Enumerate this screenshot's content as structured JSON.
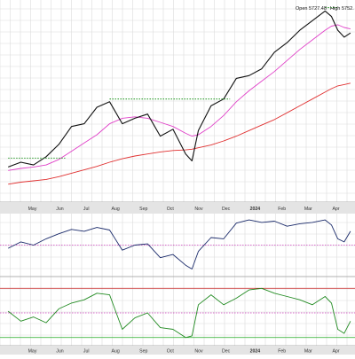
{
  "header": {
    "open_label": "Open",
    "open_value": "5727.48",
    "high_label": "High",
    "high_value": "5752."
  },
  "colors": {
    "price": "#111111",
    "ma_fast": "#e040c8",
    "ma_slow": "#e03030",
    "resistance": "#2e9e2e",
    "osc1": "#1a2a6a",
    "osc1_ref": "#d040c0",
    "osc2": "#228b22",
    "osc2_mid": "#d040c0",
    "osc2_high": "#cc2222",
    "osc2_low": "#22aa22",
    "grid": "#dcdcdc",
    "axis_strip": "#e4e4e4"
  },
  "chart_data": [
    {
      "type": "line",
      "panel": "price",
      "x": [
        "2023-04-10",
        "2023-04-24",
        "2023-05-08",
        "2023-05-22",
        "2023-06-05",
        "2023-06-19",
        "2023-07-03",
        "2023-07-17",
        "2023-07-31",
        "2023-08-14",
        "2023-08-28",
        "2023-09-11",
        "2023-09-25",
        "2023-10-09",
        "2023-10-23",
        "2023-10-30",
        "2023-11-06",
        "2023-11-20",
        "2023-12-04",
        "2023-12-18",
        "2024-01-01",
        "2024-01-15",
        "2024-01-29",
        "2024-02-12",
        "2024-02-26",
        "2024-03-11",
        "2024-03-25",
        "2024-04-01",
        "2024-04-08",
        "2024-04-15",
        "2024-04-22"
      ],
      "categories_axis": [
        "May",
        "Jun",
        "Jul",
        "Aug",
        "Sep",
        "Oct",
        "Nov",
        "Dec",
        "2024",
        "Feb",
        "Mar",
        "Apr"
      ],
      "series": [
        {
          "key": "price",
          "values": [
            4105,
            4140,
            4120,
            4180,
            4270,
            4400,
            4420,
            4540,
            4580,
            4420,
            4460,
            4490,
            4330,
            4380,
            4200,
            4150,
            4370,
            4550,
            4600,
            4750,
            4770,
            4820,
            4940,
            5010,
            5100,
            5170,
            5240,
            5200,
            5100,
            5050,
            5080
          ]
        },
        {
          "key": "ma_fast",
          "values": [
            4080,
            4095,
            4105,
            4120,
            4160,
            4220,
            4280,
            4340,
            4420,
            4460,
            4470,
            4460,
            4430,
            4400,
            4350,
            4330,
            4340,
            4400,
            4480,
            4580,
            4660,
            4730,
            4800,
            4880,
            4960,
            5030,
            5100,
            5130,
            5140,
            5120,
            5110
          ]
        },
        {
          "key": "ma_slow",
          "values": [
            3980,
            3995,
            4005,
            4015,
            4035,
            4060,
            4085,
            4110,
            4140,
            4165,
            4185,
            4200,
            4215,
            4225,
            4230,
            4235,
            4245,
            4265,
            4295,
            4330,
            4370,
            4410,
            4450,
            4500,
            4550,
            4600,
            4650,
            4675,
            4695,
            4705,
            4715
          ]
        }
      ],
      "reference_levels": [
        {
          "from": "2023-04-10",
          "to": "2023-06-12",
          "value": 4170
        },
        {
          "from": "2023-07-31",
          "to": "2023-12-11",
          "value": 4600
        },
        {
          "from": "2024-03-25",
          "to": "2024-04-08",
          "value": 5265
        }
      ],
      "ylim": [
        3850,
        5320
      ]
    },
    {
      "type": "line",
      "panel": "oscillator-1",
      "x_count": 31,
      "series": [
        {
          "key": "osc1",
          "values": [
            0.45,
            0.55,
            0.5,
            0.6,
            0.68,
            0.75,
            0.72,
            0.78,
            0.74,
            0.42,
            0.5,
            0.52,
            0.3,
            0.35,
            0.18,
            0.12,
            0.4,
            0.62,
            0.6,
            0.85,
            0.9,
            0.86,
            0.88,
            0.8,
            0.84,
            0.86,
            0.9,
            0.82,
            0.6,
            0.55,
            0.72
          ]
        }
      ],
      "reference_levels": [
        {
          "value": 0.5,
          "style": "dotted"
        }
      ],
      "ylim": [
        0,
        1
      ]
    },
    {
      "type": "line",
      "panel": "oscillator-2",
      "x_count": 31,
      "series": [
        {
          "key": "osc2",
          "values": [
            52,
            40,
            45,
            38,
            55,
            62,
            66,
            74,
            72,
            30,
            44,
            50,
            32,
            30,
            20,
            22,
            60,
            72,
            60,
            68,
            78,
            80,
            74,
            70,
            66,
            60,
            70,
            62,
            30,
            25,
            40
          ]
        }
      ],
      "reference_levels": [
        {
          "value": 80,
          "style": "solid"
        },
        {
          "value": 50,
          "style": "dotted"
        },
        {
          "value": 20,
          "style": "solid"
        }
      ],
      "ylim": [
        10,
        90
      ]
    }
  ]
}
